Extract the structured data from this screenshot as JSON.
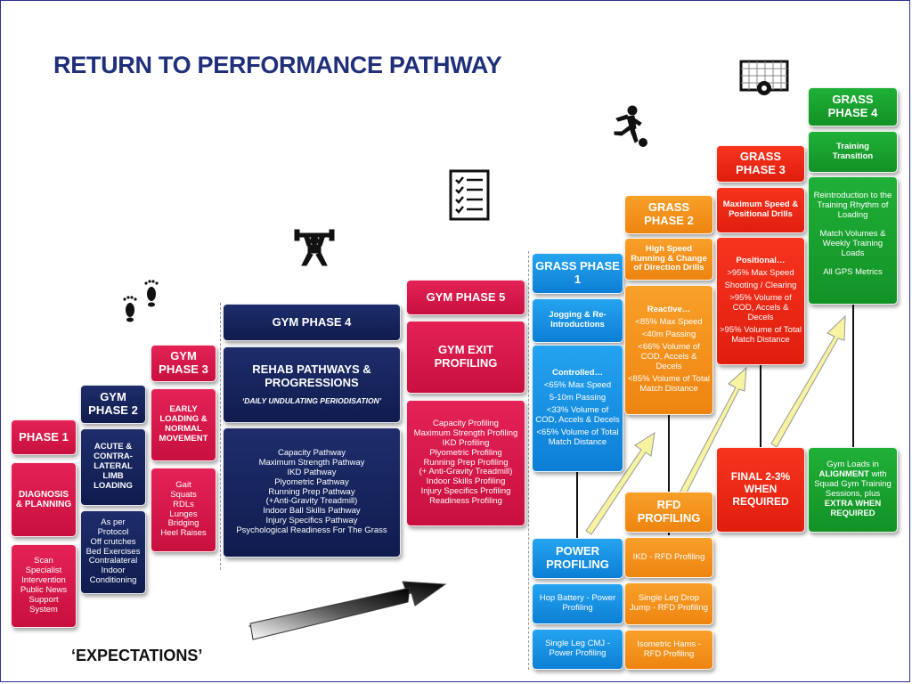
{
  "title": "RETURN TO PERFORMANCE PATHWAY",
  "expectations": "‘EXPECTATIONS’",
  "phase1": {
    "header": "PHASE 1",
    "sub": "DIAGNOSIS & PLANNING",
    "items": [
      "Scan",
      "Specialist",
      "Intervention",
      "Public News",
      "Support",
      "System"
    ]
  },
  "gym2": {
    "header": "GYM PHASE 2",
    "sub": "ACUTE & CONTRA-LATERAL LIMB LOADING",
    "items": [
      "As per",
      "Protocol",
      "Off crutches",
      "Bed Exercises",
      "Contralateral",
      "Indoor",
      "Conditioning"
    ]
  },
  "gym3": {
    "header": "GYM PHASE 3",
    "sub": "EARLY LOADING & NORMAL MOVEMENT",
    "items": [
      "Gait",
      "Squats",
      "RDLs",
      "Lunges",
      "Bridging",
      "Heel Raises"
    ]
  },
  "gym4": {
    "header": "GYM PHASE 4",
    "sub_title": "REHAB PATHWAYS & PROGRESSIONS",
    "sub_note": "‘DAILY UNDULATING PERIODISATION’",
    "items": [
      "Capacity Pathway",
      "Maximum Strength Pathway",
      "IKD Pathway",
      "Plyometric Pathway",
      "Running Prep Pathway",
      "(+Anti-Gravity Treadmill)",
      "Indoor Ball Skills Pathway",
      "Injury Specifics Pathway",
      "Psychological Readiness For The Grass"
    ]
  },
  "gym5": {
    "header": "GYM PHASE 5",
    "sub": "GYM EXIT PROFILING",
    "items": [
      "Capacity Profiling",
      "Maximum Strength Profiling",
      "IKD Profiling",
      "Plyometric Profiling",
      "Running Prep Profiling",
      "(+ Anti-Gravity Treadmill)",
      "Indoor Skills Profiling",
      "Injury Specifics Profiling",
      "Readiness Profiling"
    ]
  },
  "grass1": {
    "header": "GRASS PHASE 1",
    "sub": "Jogging & Re-Introductions",
    "detail_title": "Controlled…",
    "details": [
      "<65% Max Speed",
      "5-10m Passing",
      "<33% Volume of COD, Accels & Decels",
      "<65% Volume of Total Match Distance"
    ]
  },
  "power": {
    "header": "POWER PROFILING",
    "items": [
      "Hop Battery - Power Profiling",
      "Single Leg CMJ - Power Profiling"
    ]
  },
  "grass2": {
    "header": "GRASS PHASE 2",
    "sub": "High Speed Running & Change of Direction Drills",
    "detail_title": "Reactive…",
    "details": [
      "<85% Max Speed",
      "<40m Passing",
      "<66% Volume of COD, Accels & Decels",
      "<85% Volume of Total Match Distance"
    ]
  },
  "rfd": {
    "header": "RFD PROFILING",
    "items": [
      "IKD - RFD Profiling",
      "Single Leg Drop Jump - RFD Profiling",
      "Isometric Hams - RFD Profiling"
    ]
  },
  "grass3": {
    "header": "GRASS PHASE 3",
    "sub": "Maximum Speed & Positional Drills",
    "detail_title": "Positional…",
    "details": [
      ">95% Max Speed",
      "Shooting / Clearing",
      ">95% Volume of COD, Accels & Decels",
      ">95% Volume of Total Match Distance"
    ]
  },
  "final": {
    "text": "FINAL 2-3% WHEN REQUIRED"
  },
  "grass4": {
    "header": "GRASS PHASE 4",
    "sub": "Training Transition",
    "details": [
      "Reintroduction to the Training Rhythm of Loading",
      "Match Volumes & Weekly Training Loads",
      "All GPS Metrics"
    ],
    "gym_loads": {
      "line1": "Gym Loads in",
      "line2_bold": "ALIGNMENT",
      "line2_rest": " with",
      "line3": "Squad Gym Training",
      "line4": "Sessions, plus",
      "line5_bold": "EXTRA WHEN REQUIRED"
    }
  },
  "icons": [
    "footprints-icon",
    "weightlifter-icon",
    "checklist-icon",
    "footballer-icon",
    "goal-icon"
  ],
  "colors": {
    "title": "#1f2f7a",
    "pink": "#d81b4a",
    "navy": "#172462",
    "blue": "#1592e6",
    "orange": "#f39219",
    "red": "#ec2a16",
    "green": "#189c2e",
    "arrow_yellow": "#f7f3a0"
  }
}
